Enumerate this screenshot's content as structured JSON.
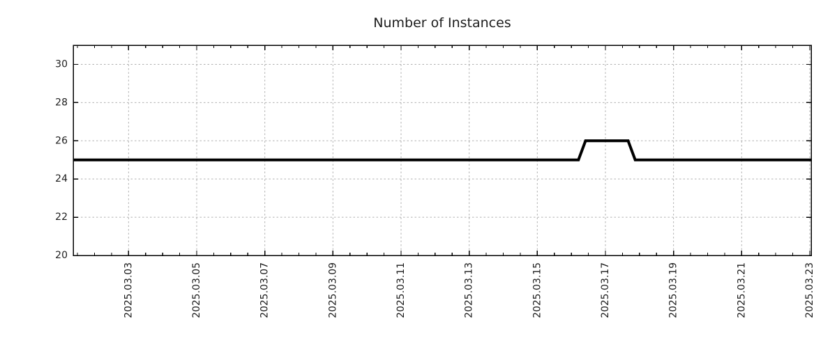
{
  "chart_data": {
    "type": "line",
    "title": "Number of Instances",
    "x_axis": {
      "unit": "date",
      "start": "2025-03-01 09:00",
      "end": "2025-03-23 01:00",
      "major_tick_dates": [
        "2025-03-03",
        "2025-03-05",
        "2025-03-07",
        "2025-03-09",
        "2025-03-11",
        "2025-03-13",
        "2025-03-15",
        "2025-03-17",
        "2025-03-19",
        "2025-03-21",
        "2025-03-23"
      ],
      "tick_labels": [
        "2025.03.03",
        "2025.03.05",
        "2025.03.07",
        "2025.03.09",
        "2025.03.11",
        "2025.03.13",
        "2025.03.15",
        "2025.03.17",
        "2025.03.19",
        "2025.03.21",
        "2025.03.23"
      ],
      "minor_tick_interval_hours": 12,
      "label_rotation_deg": -90
    },
    "y_axis": {
      "min": 20,
      "max": 31,
      "major_ticks": [
        20,
        22,
        24,
        26,
        28,
        30
      ],
      "tick_labels": [
        "20",
        "22",
        "24",
        "26",
        "28",
        "30"
      ]
    },
    "series": [
      {
        "name": "instances",
        "color": "#000000",
        "line_width": 4,
        "points": [
          {
            "date": "2025-03-01 09:00",
            "value": 25
          },
          {
            "date": "2025-03-16 05:00",
            "value": 25
          },
          {
            "date": "2025-03-16 10:00",
            "value": 26
          },
          {
            "date": "2025-03-17 16:00",
            "value": 26
          },
          {
            "date": "2025-03-17 21:00",
            "value": 25
          },
          {
            "date": "2025-03-23 01:00",
            "value": 25
          }
        ]
      }
    ],
    "grid": {
      "show": true,
      "color": "#b0b0b0",
      "dash": "2.5 3"
    },
    "frame": {
      "axis_color": "#000000",
      "background": "#ffffff",
      "text_color": "#1c1c1c"
    }
  }
}
